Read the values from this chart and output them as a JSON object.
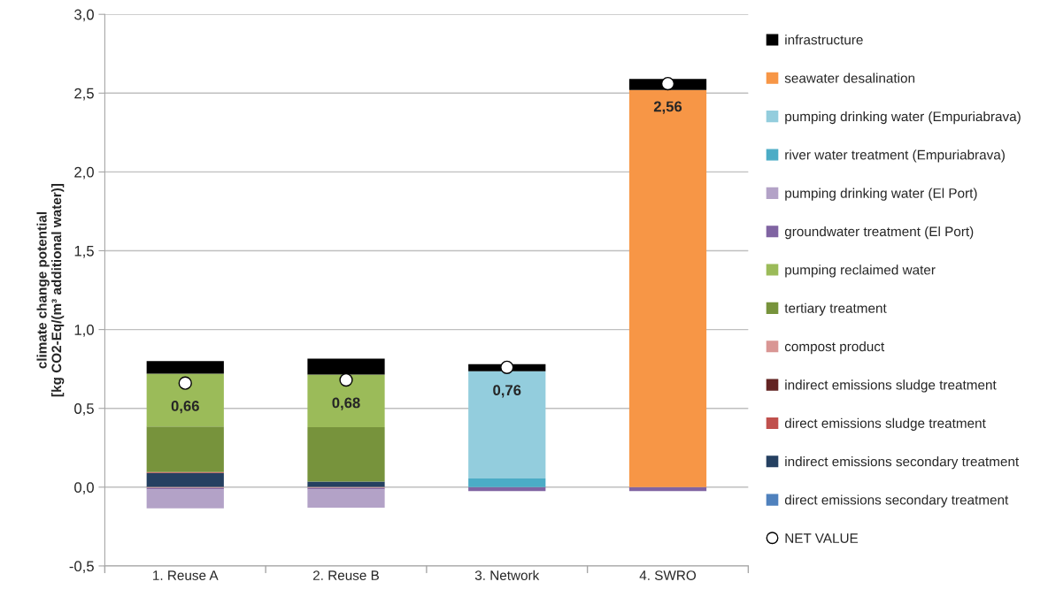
{
  "chart_data": {
    "type": "bar",
    "stacked": true,
    "ylabel": "climate change potential\n[kg CO2-Eq/(m³ additional water)]",
    "categories": [
      "1. Reuse A",
      "2. Reuse B",
      "3. Network",
      "4. SWRO"
    ],
    "ylim": [
      -0.5,
      3.0
    ],
    "yticks": [
      {
        "value": -0.5,
        "label": "-0,5"
      },
      {
        "value": 0,
        "label": "0,0"
      },
      {
        "value": 0.5,
        "label": "0,5"
      },
      {
        "value": 1.0,
        "label": "1,0"
      },
      {
        "value": 1.5,
        "label": "1,5"
      },
      {
        "value": 2.0,
        "label": "2,0"
      },
      {
        "value": 2.5,
        "label": "2,5"
      },
      {
        "value": 3.0,
        "label": "3,0"
      }
    ],
    "grid": "y",
    "legend": "right",
    "series": [
      {
        "name": "direct emissions secondary treatment",
        "color": "#4f81bd",
        "values": [
          null,
          null,
          null,
          null
        ]
      },
      {
        "name": "indirect emissions secondary treatment",
        "color": "#254061",
        "values": [
          0.09,
          0.035,
          null,
          null
        ]
      },
      {
        "name": "direct emissions sludge treatment",
        "color": "#c0504d",
        "values": [
          0.005,
          null,
          null,
          null
        ]
      },
      {
        "name": "indirect emissions sludge treatment",
        "color": "#632423",
        "values": [
          null,
          null,
          null,
          null
        ]
      },
      {
        "name": "compost product",
        "color": "#d99694",
        "values": [
          -0.005,
          -0.005,
          null,
          null
        ]
      },
      {
        "name": "tertiary treatment",
        "color": "#77933c",
        "values": [
          0.29,
          0.345,
          null,
          null
        ]
      },
      {
        "name": "pumping reclaimed water",
        "color": "#9bbb59",
        "values": [
          0.335,
          0.335,
          null,
          null
        ]
      },
      {
        "name": "groundwater treatment (El Port)",
        "color": "#8064a2",
        "values": [
          -0.01,
          -0.01,
          -0.025,
          -0.025
        ]
      },
      {
        "name": "pumping drinking water (El Port)",
        "color": "#b3a2c7",
        "values": [
          -0.12,
          -0.115,
          null,
          null
        ]
      },
      {
        "name": "river water treatment (Empuriabrava)",
        "color": "#4bacc6",
        "values": [
          null,
          null,
          0.055,
          null
        ]
      },
      {
        "name": "pumping drinking water (Empuriabrava)",
        "color": "#93cddd",
        "values": [
          null,
          null,
          0.68,
          null
        ]
      },
      {
        "name": "seawater desalination",
        "color": "#f79646",
        "values": [
          null,
          null,
          null,
          2.52
        ]
      },
      {
        "name": "infrastructure",
        "color": "#000000",
        "values": [
          0.08,
          0.1,
          0.045,
          0.07
        ]
      },
      {
        "name": "NET VALUE",
        "type": "scatter",
        "marker": "circle",
        "color": "#ffffff",
        "x": [
          "1. Reuse A",
          "2. Reuse B",
          "3. Network",
          "4. SWRO"
        ],
        "values": [
          0.66,
          0.68,
          0.76,
          2.56
        ],
        "value_labels": [
          "0,66",
          "0,68",
          "0,76",
          "2,56"
        ]
      }
    ]
  }
}
